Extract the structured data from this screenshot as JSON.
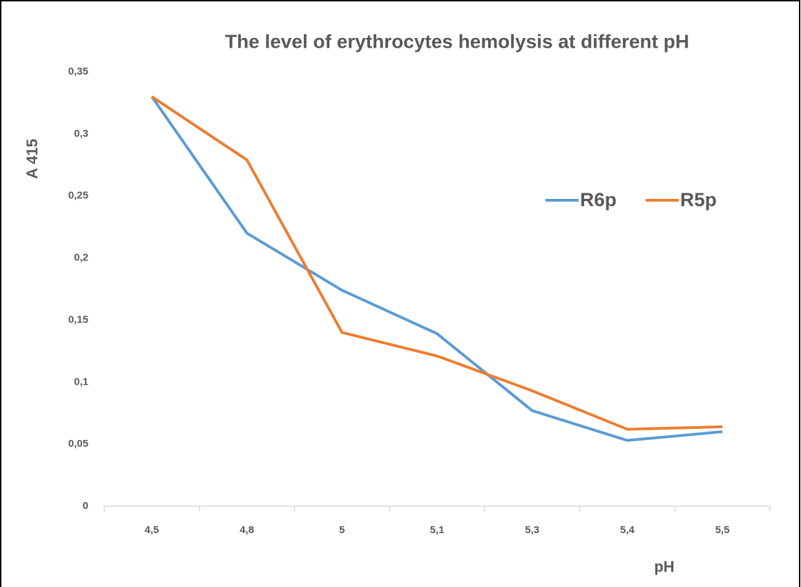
{
  "chart_data": {
    "type": "line",
    "title": "The level of erythrocytes  hemolysis  at different pH",
    "x_label": "pH",
    "y_label": "A 415",
    "categories": [
      "4,5",
      "4,8",
      "5",
      "5,1",
      "5,3",
      "5,4",
      "5,5"
    ],
    "series": [
      {
        "name": "R6p",
        "color": "#5b9bd5",
        "values": [
          0.33,
          0.22,
          0.174,
          0.139,
          0.077,
          0.053,
          0.06
        ]
      },
      {
        "name": "R5p",
        "color": "#ed7d31",
        "values": [
          0.33,
          0.279,
          0.14,
          0.121,
          0.093,
          0.062,
          0.064
        ]
      }
    ],
    "ylim": [
      0,
      0.35
    ],
    "yticks": [
      0,
      {
        "value": 0.05,
        "label": "0,05"
      },
      {
        "value": 0.1,
        "label": "0,1"
      },
      {
        "value": 0.15,
        "label": "0,15"
      },
      {
        "value": 0.2,
        "label": "0,2"
      },
      {
        "value": 0.25,
        "label": "0,25"
      },
      {
        "value": 0.3,
        "label": "0,3"
      },
      {
        "value": 0.35,
        "label": "0,35"
      }
    ],
    "grid": false,
    "legend": "upper right"
  }
}
